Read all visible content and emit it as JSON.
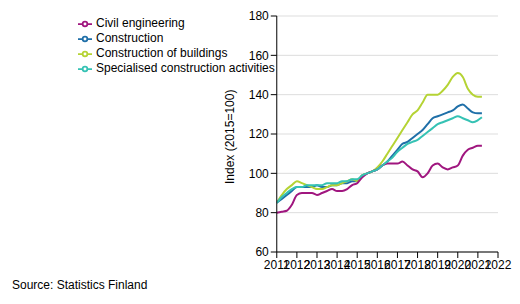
{
  "chart_data": {
    "type": "line",
    "y_label": "Index (2015=100)",
    "source": "Source: Statistics Finland",
    "x": [
      2011,
      2011.25,
      2011.5,
      2011.75,
      2012,
      2012.25,
      2012.5,
      2012.75,
      2013,
      2013.25,
      2013.5,
      2013.75,
      2014,
      2014.25,
      2014.5,
      2014.75,
      2015,
      2015.25,
      2015.5,
      2015.75,
      2016,
      2016.25,
      2016.5,
      2016.75,
      2017,
      2017.25,
      2017.5,
      2017.75,
      2018,
      2018.25,
      2018.5,
      2018.75,
      2019,
      2019.25,
      2019.5,
      2019.75,
      2020,
      2020.25,
      2020.5,
      2020.75,
      2021,
      2021.2
    ],
    "series": [
      {
        "name": "Construction",
        "color": "#1f6fa8",
        "values": [
          85,
          87,
          89,
          91,
          93,
          93,
          93,
          93,
          94,
          93,
          93,
          94,
          94,
          95,
          95,
          96,
          96,
          99,
          100,
          101,
          102,
          104,
          106,
          109,
          112,
          115,
          116,
          118,
          120,
          122,
          125,
          128,
          129,
          130,
          131,
          132,
          134,
          135,
          133,
          131,
          130.5,
          130.5
        ]
      },
      {
        "name": "Construction of buildings",
        "color": "#b5d334",
        "values": [
          85,
          89,
          92,
          94,
          96,
          95,
          94,
          93,
          92,
          92,
          93,
          94,
          94,
          95,
          96,
          97,
          96,
          99,
          100,
          101,
          103,
          106,
          110,
          114,
          118,
          122,
          126,
          130,
          132,
          136,
          140,
          140,
          140,
          142,
          145,
          149,
          151,
          149,
          143,
          140,
          139,
          139
        ]
      },
      {
        "name": "Civil engineering",
        "color": "#a0167f",
        "values": [
          80,
          80.5,
          81,
          84,
          89,
          90,
          90,
          90,
          89,
          90,
          91,
          92,
          91,
          91,
          92,
          94,
          95,
          98,
          100,
          101,
          102,
          104,
          105,
          105,
          105,
          106,
          104,
          102,
          101,
          98,
          100,
          104,
          105,
          103,
          102,
          103,
          104,
          109,
          112,
          113,
          114,
          114
        ]
      },
      {
        "name": "Specialised construction activities",
        "color": "#35c2b4",
        "values": [
          85,
          88,
          90,
          92,
          93,
          93,
          94,
          94,
          94,
          94,
          95,
          95,
          95,
          96,
          96,
          97,
          97,
          99,
          100,
          101,
          102,
          104,
          106,
          108,
          111,
          113,
          115,
          116,
          117,
          119,
          121,
          123,
          125,
          126,
          127,
          128,
          129,
          128,
          127,
          126,
          127,
          128.5
        ]
      }
    ],
    "xlim": [
      2011,
      2022
    ],
    "xticks": [
      2011,
      2012,
      2013,
      2014,
      2015,
      2016,
      2017,
      2018,
      2019,
      2020,
      2021,
      2022
    ],
    "ylim": [
      60,
      180
    ],
    "yticks": [
      60,
      80,
      100,
      120,
      140,
      160,
      180
    ],
    "grid": true,
    "legend": "upper left"
  }
}
